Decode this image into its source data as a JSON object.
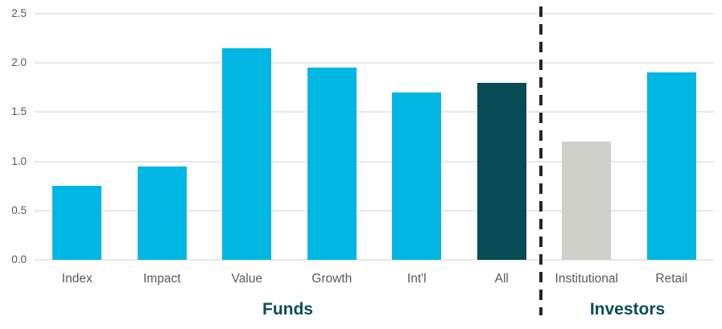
{
  "chart_data": {
    "type": "bar",
    "categories": [
      "Index",
      "Impact",
      "Value",
      "Growth",
      "Int'l",
      "All",
      "Institutional",
      "Retail"
    ],
    "values": [
      0.75,
      0.95,
      2.15,
      1.95,
      1.7,
      1.8,
      1.2,
      1.9
    ],
    "bar_colors": [
      "#00B7E3",
      "#00B7E3",
      "#00B7E3",
      "#00B7E3",
      "#00B7E3",
      "#074B55",
      "#D0D0CB",
      "#00B7E3"
    ],
    "title": "",
    "xlabel": "",
    "ylabel": "",
    "ylim": [
      0,
      2.5
    ],
    "yticks": [
      "0.0",
      "0.5",
      "1.0",
      "1.5",
      "2.0",
      "2.5"
    ],
    "grid": true,
    "legend": false,
    "groups": [
      {
        "label": "Funds",
        "start": 0,
        "end": 5
      },
      {
        "label": "Investors",
        "start": 6,
        "end": 7
      }
    ],
    "separator_after_index": 5
  },
  "colors": {
    "bar_cyan": "#00B7E3",
    "bar_dark_teal": "#074B55",
    "bar_gray": "#D0D0CB",
    "axis_text": "#595959",
    "gridline": "#E8E8E8",
    "group_label_text": "#0C4D58",
    "separator_line": "#262626",
    "background": "#FFFFFF"
  }
}
